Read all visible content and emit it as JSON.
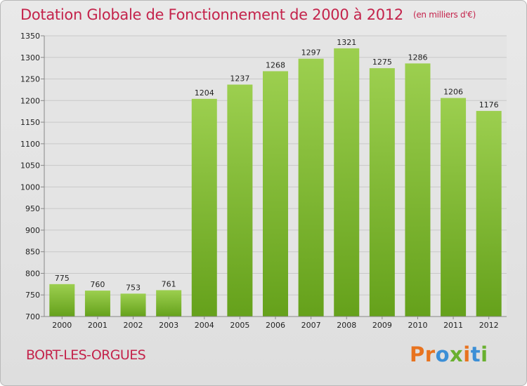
{
  "header": {
    "title": "Dotation Globale de Fonctionnement de 2000 à 2012",
    "unit": "(en milliers d'€)"
  },
  "footer": {
    "town": "BORT-LES-ORGUES",
    "logo": "Proxiti",
    "logo_colors": [
      "#e8731f",
      "#e8731f",
      "#3c8fd6",
      "#69b02f",
      "#e8731f",
      "#3c8fd6",
      "#69b02f"
    ]
  },
  "chart_data": {
    "type": "bar",
    "title": "Dotation Globale de Fonctionnement de 2000 à 2012",
    "subtitle": "(en milliers d'€)",
    "categories": [
      "2000",
      "2001",
      "2002",
      "2003",
      "2004",
      "2005",
      "2006",
      "2007",
      "2008",
      "2009",
      "2010",
      "2011",
      "2012"
    ],
    "values": [
      775,
      760,
      753,
      761,
      1204,
      1237,
      1268,
      1297,
      1321,
      1275,
      1286,
      1206,
      1176
    ],
    "data_labels": [
      "775",
      "760",
      "753",
      "761",
      "1204",
      "1237",
      "1268",
      "1297",
      "1321",
      "1275",
      "1286",
      "1206",
      "1176"
    ],
    "ylim": [
      700,
      1350
    ],
    "yticks": [
      700,
      750,
      800,
      850,
      900,
      950,
      1000,
      1050,
      1100,
      1150,
      1200,
      1250,
      1300,
      1350
    ],
    "grid": true,
    "legend": "none",
    "bar_color_top": "#9ccf4f",
    "bar_color_bottom": "#65a11b"
  }
}
